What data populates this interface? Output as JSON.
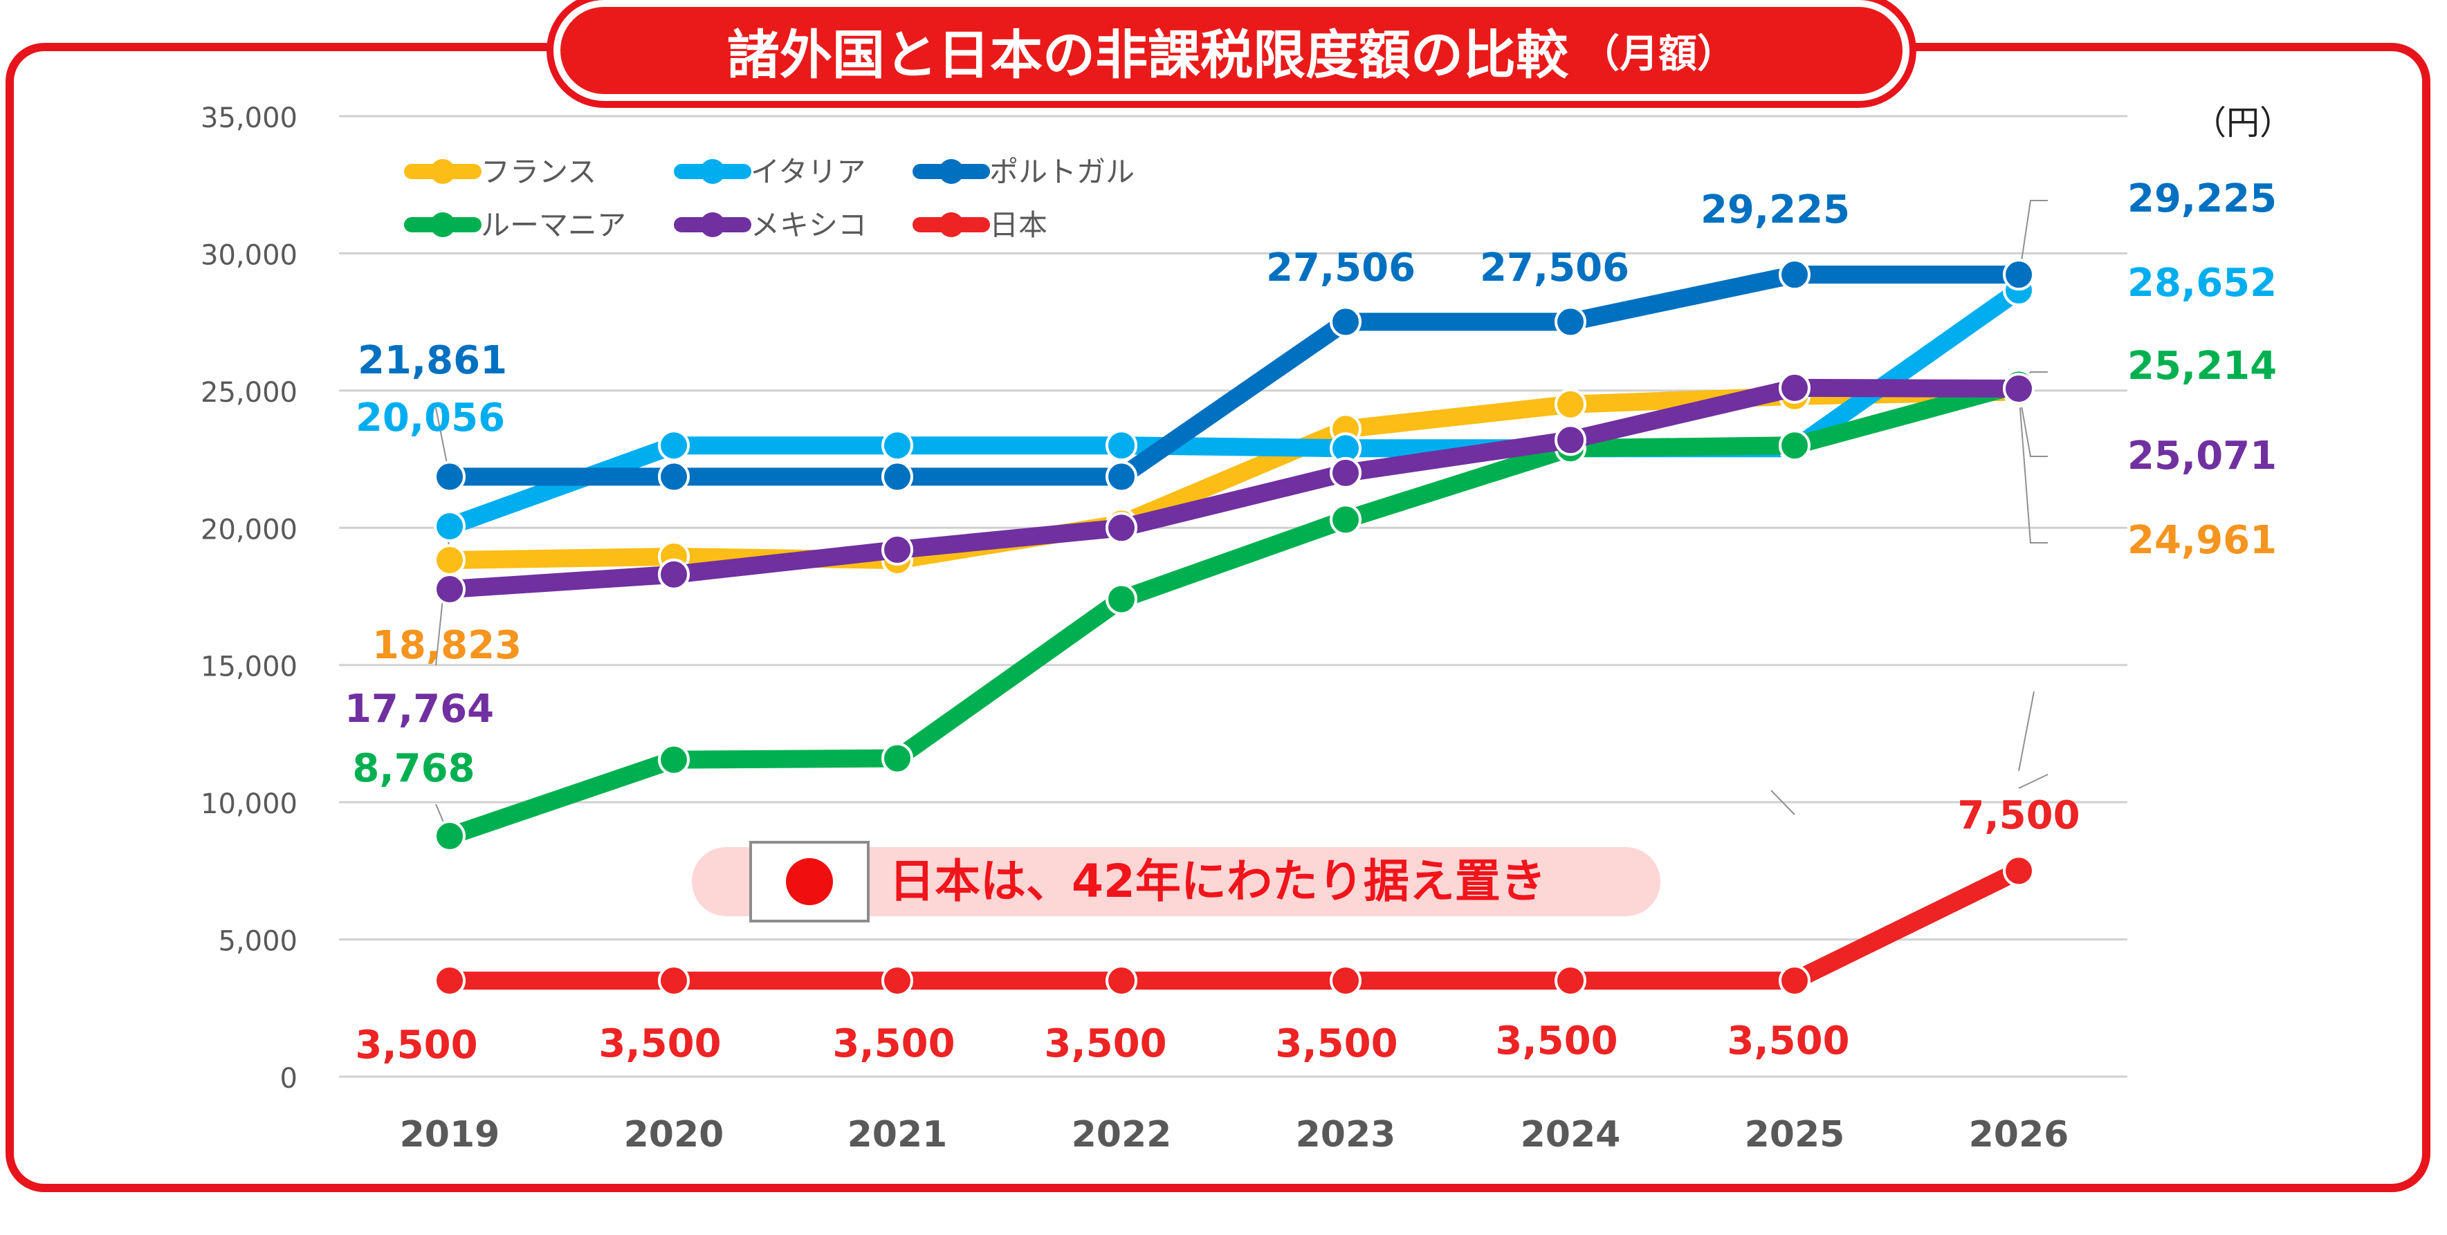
{
  "title": "諸外国と日本の非課税限度額の比較",
  "title_suffix": "（月額）",
  "unit": "（円）",
  "chart_data": {
    "type": "line",
    "title": "諸外国と日本の非課税限度額の比較（月額）",
    "xlabel": "",
    "ylabel": "（円）",
    "categories": [
      "2019",
      "2020",
      "2021",
      "2022",
      "2023",
      "2024",
      "2025",
      "2026"
    ],
    "ylim": [
      0,
      35000
    ],
    "yticks": [
      0,
      5000,
      10000,
      15000,
      20000,
      25000,
      30000,
      35000
    ],
    "ytick_labels": [
      "0",
      "5,000",
      "10,000",
      "15,000",
      "20,000",
      "25,000",
      "30,000",
      "35,000"
    ],
    "series": [
      {
        "name": "フランス",
        "color": "#fbbd16",
        "label_color": "#f5941e",
        "values": [
          18823,
          18950,
          18823,
          20150,
          23600,
          24500,
          24800,
          24961
        ],
        "labels": {
          "0": "18,823",
          "7": "24,961"
        }
      },
      {
        "name": "イタリア",
        "color": "#00aeef",
        "label_color": "#00aeef",
        "values": [
          20056,
          23000,
          23000,
          23000,
          22900,
          22900,
          22900,
          28652
        ],
        "labels": {
          "0": "20,056",
          "7": "28,652"
        }
      },
      {
        "name": "ポルトガル",
        "color": "#0070c0",
        "label_color": "#0070c0",
        "values": [
          21861,
          21861,
          21861,
          21861,
          27506,
          27506,
          29225,
          29225
        ],
        "labels": {
          "0": "21,861",
          "4": "27,506",
          "5": "27,506",
          "6": "29,225",
          "7": "29,225"
        }
      },
      {
        "name": "ルーマニア",
        "color": "#00b050",
        "label_color": "#00b050",
        "values": [
          8768,
          11550,
          11600,
          17400,
          20300,
          22900,
          23000,
          25214
        ],
        "labels": {
          "0": "8,768",
          "7": "25,214"
        }
      },
      {
        "name": "メキシコ",
        "color": "#7030a0",
        "label_color": "#7030a0",
        "values": [
          17764,
          18300,
          19200,
          20000,
          22000,
          23200,
          25100,
          25071
        ],
        "labels": {
          "0": "17,764",
          "7": "25,071"
        }
      },
      {
        "name": "日本",
        "color": "#ed2324",
        "label_color": "#ed2324",
        "values": [
          3500,
          3500,
          3500,
          3500,
          3500,
          3500,
          3500,
          7500
        ],
        "labels": {
          "0": "3,500",
          "1": "3,500",
          "2": "3,500",
          "3": "3,500",
          "4": "3,500",
          "5": "3,500",
          "6": "3,500",
          "7": "7,500"
        }
      }
    ],
    "annotation": "日本は、42年にわたり据え置き"
  }
}
